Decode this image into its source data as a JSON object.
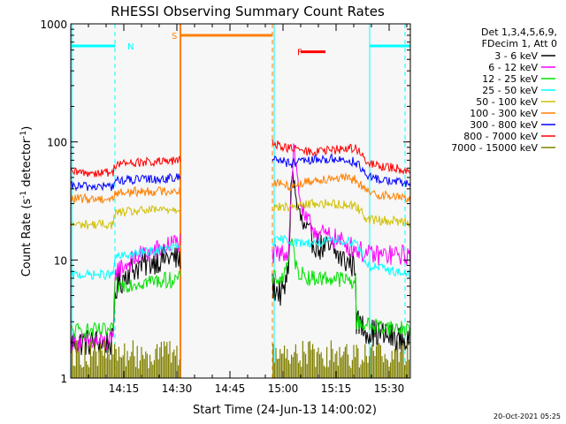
{
  "chart_data": {
    "type": "line",
    "title": "RHESSI Observing Summary Count Rates",
    "xlabel": "Start Time (24-Jun-13 14:00:02)",
    "ylabel": "Count Rate (s",
    "ylabel_sup": "-1",
    "ylabel_tail": " detector",
    "ylabel_sup2": "-1",
    "ylabel_close": ")",
    "yscale": "log",
    "ylim": [
      1,
      1000
    ],
    "xlim": [
      0,
      96
    ],
    "x_unit": "minutes after 14:00",
    "x_ticks": [
      {
        "x": 15,
        "label": "14:15"
      },
      {
        "x": 30,
        "label": "14:30"
      },
      {
        "x": 45,
        "label": "14:45"
      },
      {
        "x": 60,
        "label": "15:00"
      },
      {
        "x": 75,
        "label": "15:15"
      },
      {
        "x": 90,
        "label": "15:30"
      }
    ],
    "y_ticks": [
      {
        "y": 1,
        "label": "1"
      },
      {
        "y": 10,
        "label": "10"
      },
      {
        "y": 100,
        "label": "100"
      },
      {
        "y": 1000,
        "label": "1000"
      }
    ],
    "legend_header": [
      "Det 1,3,4,5,6,9,",
      "FDecim 1, Att 0"
    ],
    "legend_position": "right",
    "footer_date": "20-Oct-2021 05:25",
    "gaps": [
      [
        31,
        57
      ]
    ],
    "series": [
      {
        "name": "3 - 6 keV",
        "color": "#000000",
        "points": [
          [
            0,
            2
          ],
          [
            12,
            2
          ],
          [
            12.5,
            5.5
          ],
          [
            16,
            8
          ],
          [
            20,
            9
          ],
          [
            24,
            10
          ],
          [
            28,
            10.5
          ],
          [
            31,
            10
          ],
          [
            57,
            6
          ],
          [
            60,
            5
          ],
          [
            61.5,
            8
          ],
          [
            62.5,
            60
          ],
          [
            64,
            28
          ],
          [
            66,
            18
          ],
          [
            70,
            13
          ],
          [
            74,
            12
          ],
          [
            77,
            10
          ],
          [
            80.5,
            9
          ],
          [
            80.6,
            3
          ],
          [
            84,
            2.5
          ],
          [
            96,
            2
          ]
        ]
      },
      {
        "name": "6 - 12 keV",
        "color": "#ff00ff",
        "points": [
          [
            0,
            2
          ],
          [
            12,
            2
          ],
          [
            12.5,
            8
          ],
          [
            20,
            11
          ],
          [
            26,
            12.5
          ],
          [
            29,
            14
          ],
          [
            31,
            14
          ],
          [
            57,
            11
          ],
          [
            59,
            11
          ],
          [
            61.5,
            12
          ],
          [
            63,
            95
          ],
          [
            64.5,
            38
          ],
          [
            66,
            22
          ],
          [
            70,
            17
          ],
          [
            75,
            15
          ],
          [
            80.5,
            12.5
          ],
          [
            84,
            11
          ],
          [
            96,
            11
          ]
        ]
      },
      {
        "name": "12 - 25 keV",
        "color": "#00e000",
        "points": [
          [
            0,
            2.5
          ],
          [
            12,
            2.5
          ],
          [
            12.5,
            6
          ],
          [
            20,
            6.5
          ],
          [
            28,
            6.8
          ],
          [
            31,
            7
          ],
          [
            57,
            7
          ],
          [
            60,
            7
          ],
          [
            62.5,
            14
          ],
          [
            64,
            8
          ],
          [
            68,
            7
          ],
          [
            75,
            7
          ],
          [
            80.5,
            6.5
          ],
          [
            80.6,
            3
          ],
          [
            84,
            2.8
          ],
          [
            96,
            2.6
          ]
        ]
      },
      {
        "name": "25 - 50 keV",
        "color": "#00ffff",
        "points": [
          [
            0,
            7.5
          ],
          [
            12,
            7.5
          ],
          [
            12.5,
            10.5
          ],
          [
            20,
            11.5
          ],
          [
            28,
            12.5
          ],
          [
            31,
            13
          ],
          [
            57,
            14
          ],
          [
            60,
            15
          ],
          [
            64,
            14
          ],
          [
            70,
            14
          ],
          [
            75,
            14.5
          ],
          [
            80.5,
            14.5
          ],
          [
            84,
            9
          ],
          [
            96,
            7.5
          ]
        ]
      },
      {
        "name": "50 - 100 keV",
        "color": "#d0c000",
        "points": [
          [
            0,
            20
          ],
          [
            12,
            20
          ],
          [
            12.5,
            25
          ],
          [
            20,
            26
          ],
          [
            28,
            27
          ],
          [
            31,
            27
          ],
          [
            57,
            28
          ],
          [
            62,
            28
          ],
          [
            68,
            30
          ],
          [
            74,
            30
          ],
          [
            80.5,
            29
          ],
          [
            84,
            22
          ],
          [
            96,
            21
          ]
        ]
      },
      {
        "name": "100 - 300 keV",
        "color": "#ff8000",
        "points": [
          [
            0,
            33
          ],
          [
            12,
            33
          ],
          [
            12.5,
            37
          ],
          [
            20,
            38
          ],
          [
            28,
            38.5
          ],
          [
            31,
            39
          ],
          [
            57,
            46
          ],
          [
            62,
            42
          ],
          [
            68,
            47
          ],
          [
            74,
            50
          ],
          [
            80.5,
            48
          ],
          [
            84,
            37
          ],
          [
            96,
            33
          ]
        ]
      },
      {
        "name": "300 - 800 keV",
        "color": "#0000ff",
        "points": [
          [
            0,
            42
          ],
          [
            12,
            42
          ],
          [
            12.5,
            47
          ],
          [
            20,
            48
          ],
          [
            28,
            49
          ],
          [
            31,
            50
          ],
          [
            57,
            75
          ],
          [
            62,
            65
          ],
          [
            68,
            70
          ],
          [
            74,
            72
          ],
          [
            80.5,
            68
          ],
          [
            84,
            50
          ],
          [
            96,
            44
          ]
        ]
      },
      {
        "name": "800 - 7000 keV",
        "color": "#ff0000",
        "points": [
          [
            0,
            55
          ],
          [
            12,
            55
          ],
          [
            12.5,
            65
          ],
          [
            20,
            67
          ],
          [
            28,
            68
          ],
          [
            31,
            70
          ],
          [
            57,
            98
          ],
          [
            62,
            88
          ],
          [
            68,
            82
          ],
          [
            74,
            85
          ],
          [
            80.5,
            90
          ],
          [
            84,
            65
          ],
          [
            96,
            57
          ]
        ]
      },
      {
        "name": "7000 - 15000 keV",
        "color": "#808000",
        "points": [
          [
            0,
            1.5
          ],
          [
            31,
            1.5
          ],
          [
            57,
            1.5
          ],
          [
            96,
            1.5
          ]
        ]
      }
    ],
    "annotations": [
      {
        "label": "N",
        "color": "#00ffff",
        "x_label": 15,
        "ranges": [
          [
            0,
            12.5
          ],
          [
            84.5,
            96
          ]
        ],
        "y": 650
      },
      {
        "label": "S",
        "color": "#ff8000",
        "x_label": 31,
        "ranges": [
          [
            31,
            57
          ]
        ],
        "y": 800
      },
      {
        "label": "F",
        "color": "#ff0000",
        "x_label": 63,
        "ranges": [
          [
            65,
            72
          ]
        ],
        "y": 580
      }
    ],
    "markers": [
      {
        "x": 12.5,
        "color": "#00ffff",
        "style": "dashed"
      },
      {
        "x": 31,
        "color": "#ff8000",
        "style": "solid"
      },
      {
        "x": 57,
        "color": "#ff8000",
        "style": "dashed"
      },
      {
        "x": 57.5,
        "color": "#00ffff",
        "style": "solid"
      },
      {
        "x": 84.5,
        "color": "#00ffff",
        "style": "solid"
      },
      {
        "x": 94.5,
        "color": "#00ffff",
        "style": "dashed"
      },
      {
        "x": 0.3,
        "color": "#00ffff",
        "style": "solid"
      }
    ]
  }
}
